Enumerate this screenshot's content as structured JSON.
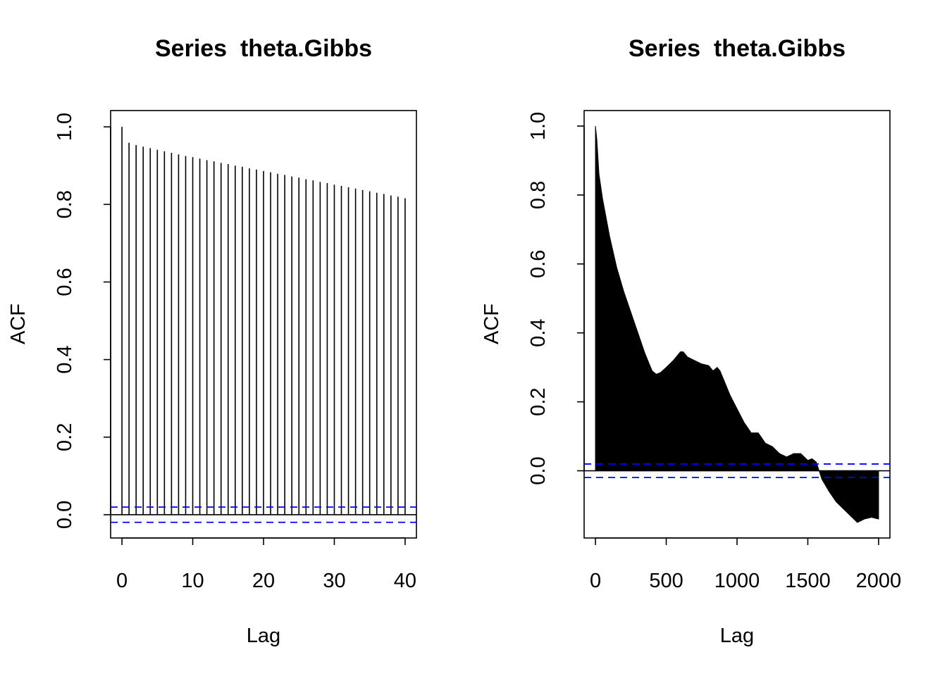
{
  "chart_data": [
    {
      "type": "bar",
      "title": "Series  theta.Gibbs",
      "xlabel": "Lag",
      "ylabel": "ACF",
      "xlim": [
        -1.6,
        41.6
      ],
      "ylim": [
        -0.06,
        1.042
      ],
      "x_ticks": [
        0,
        10,
        20,
        30,
        40
      ],
      "x_tick_labels": [
        "0",
        "10",
        "20",
        "30",
        "40"
      ],
      "y_ticks": [
        0.0,
        0.2,
        0.4,
        0.6,
        0.8,
        1.0
      ],
      "y_tick_labels": [
        "0.0",
        "0.2",
        "0.4",
        "0.6",
        "0.8",
        "1.0"
      ],
      "ci_bound": 0.0196,
      "ci_color": "#0000ff",
      "grid": false,
      "series": [
        {
          "lags": [
            0,
            1,
            2,
            3,
            4,
            5,
            6,
            7,
            8,
            9,
            10,
            11,
            12,
            13,
            14,
            15,
            16,
            17,
            18,
            19,
            20,
            21,
            22,
            23,
            24,
            25,
            26,
            27,
            28,
            29,
            30,
            31,
            32,
            33,
            34,
            35,
            36,
            37,
            38,
            39,
            40
          ],
          "values": [
            1.0,
            0.959,
            0.953,
            0.949,
            0.945,
            0.941,
            0.937,
            0.933,
            0.929,
            0.925,
            0.922,
            0.918,
            0.914,
            0.911,
            0.907,
            0.904,
            0.9,
            0.897,
            0.893,
            0.89,
            0.886,
            0.883,
            0.879,
            0.876,
            0.872,
            0.869,
            0.865,
            0.862,
            0.858,
            0.855,
            0.851,
            0.848,
            0.844,
            0.841,
            0.837,
            0.834,
            0.83,
            0.827,
            0.823,
            0.82,
            0.816
          ]
        }
      ]
    },
    {
      "type": "area",
      "title": "Series  theta.Gibbs",
      "xlabel": "Lag",
      "ylabel": "ACF",
      "xlim": [
        -80,
        2080
      ],
      "ylim": [
        -0.195,
        1.045
      ],
      "x_ticks": [
        0,
        500,
        1000,
        1500,
        2000
      ],
      "x_tick_labels": [
        "0",
        "500",
        "1000",
        "1500",
        "2000"
      ],
      "y_ticks": [
        0.0,
        0.2,
        0.4,
        0.6,
        0.8,
        1.0
      ],
      "y_tick_labels": [
        "0.0",
        "0.2",
        "0.4",
        "0.6",
        "0.8",
        "1.0"
      ],
      "ci_bound": 0.0196,
      "ci_color": "#0000ff",
      "grid": false,
      "series": [
        {
          "lags": [
            0,
            10,
            25,
            50,
            100,
            150,
            200,
            250,
            300,
            350,
            400,
            430,
            460,
            500,
            550,
            600,
            620,
            650,
            700,
            750,
            800,
            830,
            860,
            880,
            900,
            950,
            1000,
            1050,
            1100,
            1120,
            1150,
            1200,
            1250,
            1300,
            1350,
            1400,
            1450,
            1500,
            1530,
            1560,
            1580,
            1600,
            1650,
            1700,
            1750,
            1800,
            1850,
            1900,
            1950,
            2000
          ],
          "values": [
            1.0,
            0.96,
            0.86,
            0.79,
            0.68,
            0.59,
            0.52,
            0.46,
            0.4,
            0.34,
            0.29,
            0.28,
            0.285,
            0.3,
            0.32,
            0.345,
            0.345,
            0.33,
            0.32,
            0.31,
            0.305,
            0.29,
            0.3,
            0.29,
            0.27,
            0.22,
            0.18,
            0.14,
            0.11,
            0.11,
            0.11,
            0.08,
            0.07,
            0.05,
            0.04,
            0.05,
            0.05,
            0.03,
            0.035,
            0.025,
            0.0,
            -0.025,
            -0.06,
            -0.09,
            -0.11,
            -0.13,
            -0.15,
            -0.14,
            -0.135,
            -0.14
          ]
        }
      ]
    }
  ]
}
